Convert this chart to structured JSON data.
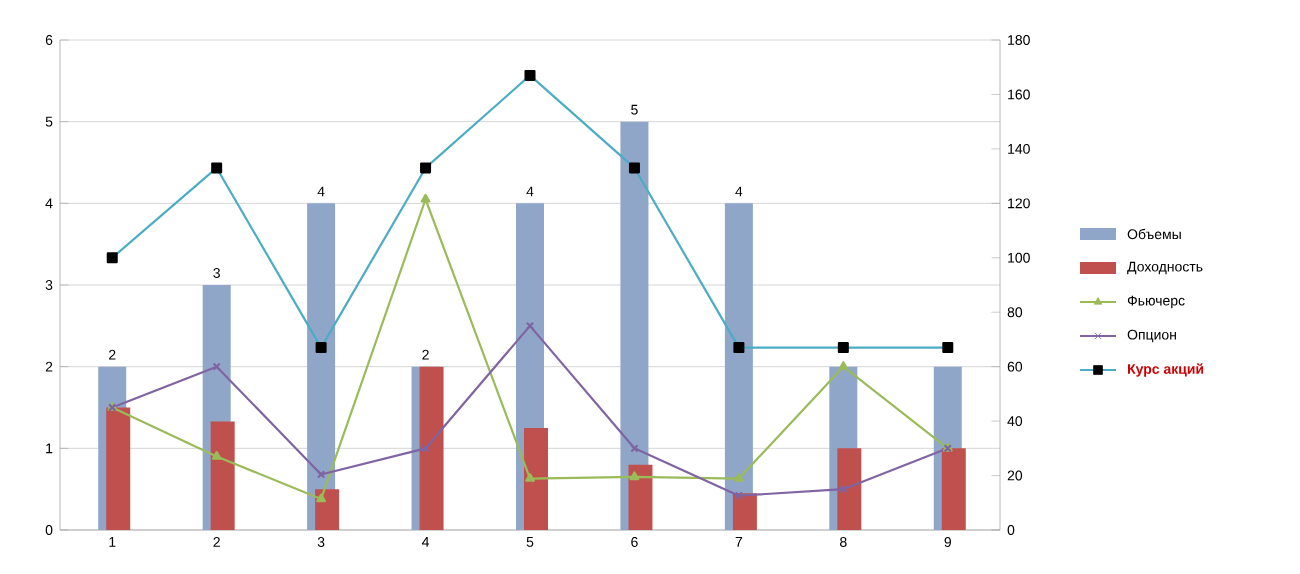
{
  "chart_data": {
    "type": "bar",
    "categories": [
      "1",
      "2",
      "3",
      "4",
      "5",
      "6",
      "7",
      "8",
      "9"
    ],
    "series": [
      {
        "name": "Объемы",
        "color": "#8fa6c9",
        "values": [
          2,
          3,
          4,
          2,
          4,
          5,
          4,
          2,
          2
        ],
        "value_labels": [
          "2",
          "3",
          "4",
          "2",
          "4",
          "5",
          "4",
          null,
          null
        ]
      },
      {
        "name": "Доходность",
        "color": "#c0504d",
        "values": [
          1.5,
          1.33,
          0.5,
          2,
          1.25,
          0.8,
          0.45,
          1.0,
          1.0
        ]
      },
      {
        "name": "Фьючерс",
        "type": "line",
        "color": "#9bbb59",
        "marker": "triangle",
        "values": [
          1.5,
          0.9,
          0.38,
          4.05,
          0.63,
          0.65,
          0.63,
          2.0,
          1.0
        ]
      },
      {
        "name": "Опцион",
        "type": "line",
        "color": "#8064a2",
        "marker": "cross",
        "values": [
          1.5,
          2.0,
          0.68,
          1.0,
          2.5,
          1.0,
          0.42,
          0.5,
          1.0
        ]
      },
      {
        "name": "Курс акций",
        "type": "line",
        "axis": "y2",
        "color": "#4bacc6",
        "marker": "square",
        "values": [
          100,
          133,
          67,
          133,
          167,
          133,
          67,
          67,
          67
        ]
      }
    ],
    "ylim": [
      0,
      6
    ],
    "yticks": [
      0,
      1,
      2,
      3,
      4,
      5,
      6
    ],
    "y2lim": [
      0,
      180
    ],
    "y2ticks": [
      0,
      20,
      40,
      60,
      80,
      100,
      120,
      140,
      160,
      180
    ],
    "grid": "y",
    "legend": "right"
  }
}
